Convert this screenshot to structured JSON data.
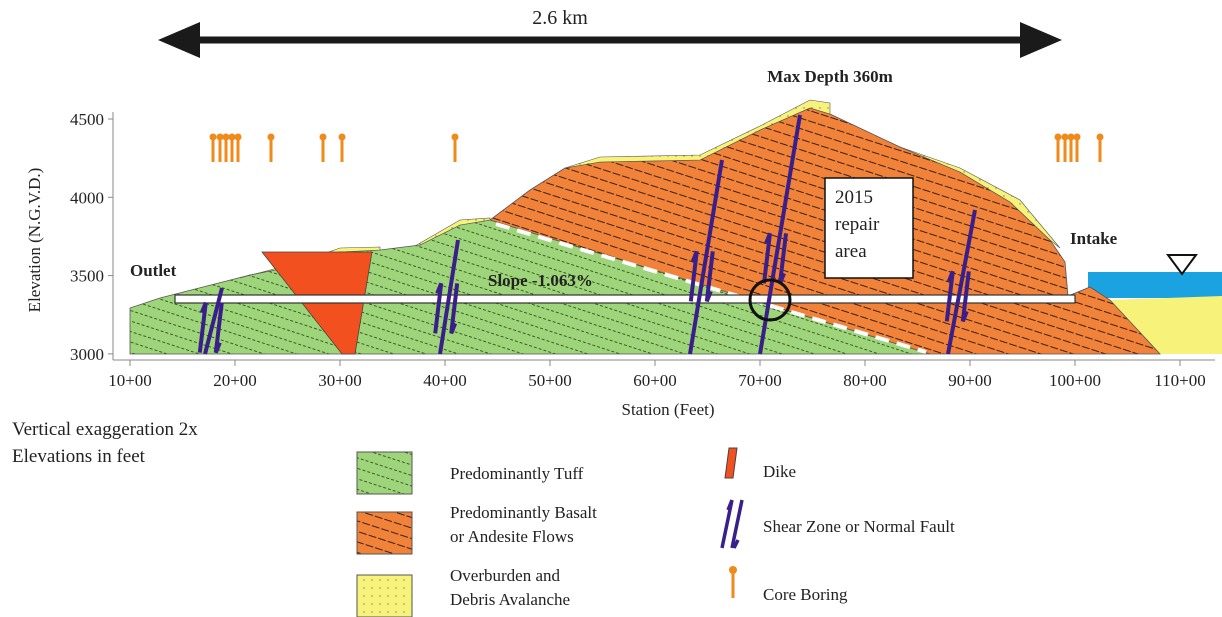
{
  "scale_bar": {
    "label": "2.6 km"
  },
  "annotations": {
    "max_depth": "Max Depth 360m",
    "outlet": "Outlet",
    "intake": "Intake",
    "slope": "Slope -1.063%",
    "repair": [
      "2015",
      "repair",
      "area"
    ]
  },
  "axes": {
    "y_title": "Elevation (N.G.V.D.)",
    "y_ticks": [
      "4500",
      "4000",
      "3500",
      "3000"
    ],
    "x_title": "Station (Feet)",
    "x_ticks": [
      "10+00",
      "20+00",
      "30+00",
      "40+00",
      "50+00",
      "60+00",
      "70+00",
      "80+00",
      "90+00",
      "100+00",
      "110+00"
    ]
  },
  "notes": [
    "Vertical exaggeration 2x",
    "Elevations in feet"
  ],
  "legend": [
    {
      "label": [
        "Predominantly Tuff"
      ]
    },
    {
      "label": [
        "Predominantly Basalt",
        "or Andesite Flows"
      ]
    },
    {
      "label": [
        "Overburden and",
        "Debris Avalanche"
      ]
    },
    {
      "label": [
        "Dike"
      ]
    },
    {
      "label": [
        "Shear Zone or Normal Fault"
      ]
    },
    {
      "label": [
        "Core Boring"
      ]
    }
  ]
}
